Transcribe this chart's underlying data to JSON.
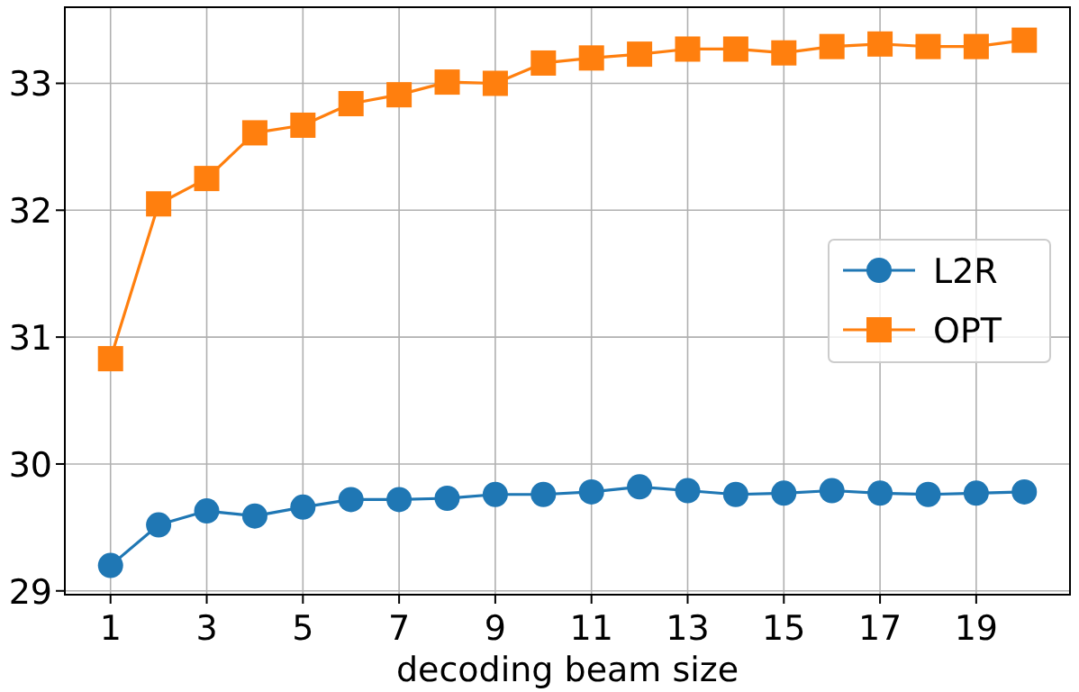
{
  "chart_data": {
    "type": "line",
    "xlabel": "decoding beam size",
    "x": [
      1,
      2,
      3,
      4,
      5,
      6,
      7,
      8,
      9,
      10,
      11,
      12,
      13,
      14,
      15,
      16,
      17,
      18,
      19,
      20
    ],
    "series": [
      {
        "name": "L2R",
        "color": "#1f77b4",
        "marker": "circle",
        "values": [
          29.2,
          29.52,
          29.63,
          29.59,
          29.66,
          29.72,
          29.72,
          29.73,
          29.76,
          29.76,
          29.78,
          29.82,
          29.79,
          29.76,
          29.77,
          29.79,
          29.77,
          29.76,
          29.77,
          29.78
        ]
      },
      {
        "name": "OPT",
        "color": "#ff7f0e",
        "marker": "square",
        "values": [
          30.83,
          32.05,
          32.25,
          32.61,
          32.67,
          32.84,
          32.91,
          33.01,
          33.0,
          33.16,
          33.2,
          33.23,
          33.27,
          33.27,
          33.24,
          33.29,
          33.31,
          33.29,
          33.29,
          33.34
        ]
      }
    ],
    "xlim": [
      0.05,
      20.95
    ],
    "xticks": [
      1,
      3,
      5,
      7,
      9,
      11,
      13,
      15,
      17,
      19
    ],
    "ylim": [
      28.97,
      33.6
    ],
    "yticks": [
      29,
      30,
      31,
      32,
      33
    ],
    "grid": true,
    "legend": "right",
    "line_style": "solid"
  }
}
